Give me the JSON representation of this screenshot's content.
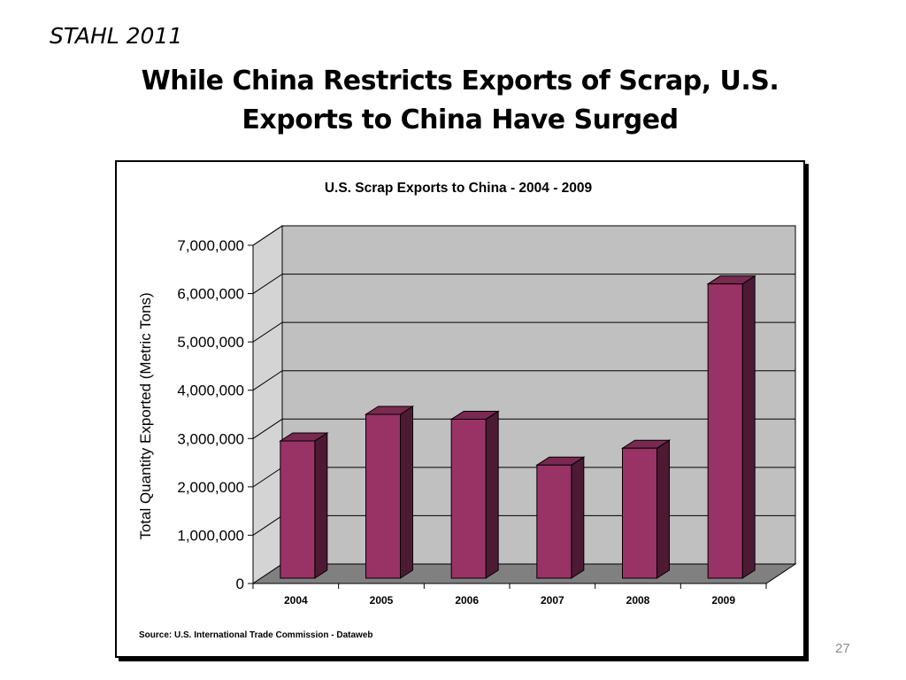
{
  "slide": {
    "tag": "STAHL 2011",
    "title_line1": "While China Restricts Exports of Scrap, U.S.",
    "title_line2": "Exports to China Have Surged",
    "page_number": "27"
  },
  "chart_data": {
    "type": "bar",
    "title": "U.S. Scrap Exports to China - 2004 - 2009",
    "xlabel": "",
    "ylabel": "Total Quantity Exported (Metric Tons)",
    "categories": [
      "2004",
      "2005",
      "2006",
      "2007",
      "2008",
      "2009"
    ],
    "values": [
      2950000,
      3500000,
      3400000,
      2450000,
      2800000,
      6200000
    ],
    "ylim": [
      0,
      7000000
    ],
    "yticks": [
      "0",
      "1,000,000",
      "2,000,000",
      "3,000,000",
      "4,000,000",
      "5,000,000",
      "6,000,000",
      "7,000,000"
    ],
    "grid": true,
    "style": "3d",
    "colors": {
      "bar_front": "#993366",
      "bar_side": "#4d1a33",
      "bar_top": "#7a2951",
      "back_wall": "#c0c0c0",
      "side_wall": "#d4d4d4",
      "floor": "#808080"
    },
    "source": "Source: U.S. International Trade Commission - Dataweb"
  }
}
